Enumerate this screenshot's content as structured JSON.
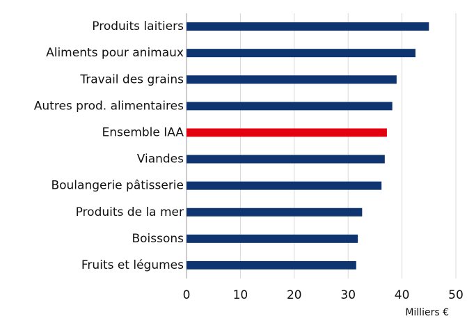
{
  "chart_data": {
    "type": "bar",
    "orientation": "horizontal",
    "categories": [
      "Produits laitiers",
      "Aliments pour animaux",
      "Travail des grains",
      "Autres prod. alimentaires",
      "Ensemble IAA",
      "Viandes",
      "Boulangerie pâtisserie",
      "Produits de la mer",
      "Boissons",
      "Fruits et légumes"
    ],
    "values": [
      45,
      42.5,
      39,
      38.2,
      37.2,
      36.8,
      36.2,
      32.6,
      31.8,
      31.5
    ],
    "colors": [
      "#0e3570",
      "#0e3570",
      "#0e3570",
      "#0e3570",
      "#e3000f",
      "#0e3570",
      "#0e3570",
      "#0e3570",
      "#0e3570",
      "#0e3570"
    ],
    "xlabel": "Milliers €",
    "xlim": [
      0,
      50
    ],
    "xticks": [
      0,
      10,
      20,
      30,
      40,
      50
    ],
    "grid": true
  }
}
